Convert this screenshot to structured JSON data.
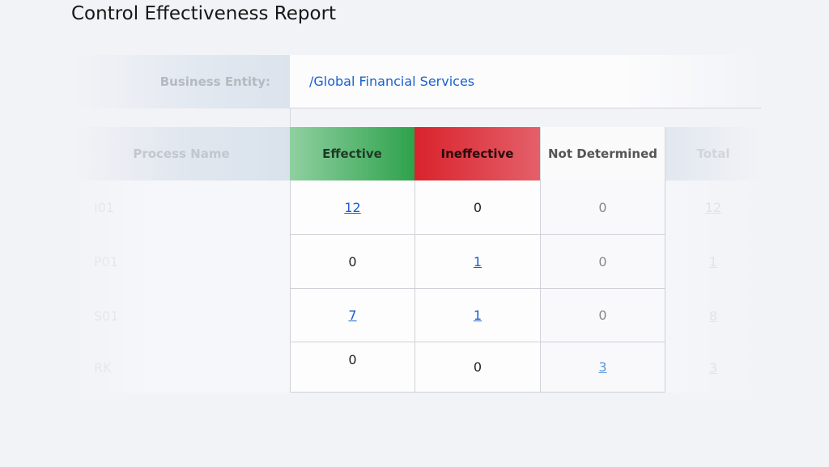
{
  "title": "Control Effectiveness Report",
  "entity": {
    "label": "Business Entity:",
    "value": "/Global Financial Services"
  },
  "columns": [
    "Process Name",
    "Effective",
    "Ineffective",
    "Not Determined",
    "Total"
  ],
  "rows": [
    {
      "name": "I01",
      "effective": "12",
      "ineffective": "0",
      "not_determined": "0",
      "total": "12"
    },
    {
      "name": "P01",
      "effective": "0",
      "ineffective": "1",
      "not_determined": "0",
      "total": "1"
    },
    {
      "name": "S01",
      "effective": "7",
      "ineffective": "1",
      "not_determined": "0",
      "total": "8"
    },
    {
      "name": "RK",
      "effective": "0",
      "ineffective": "0",
      "not_determined": "3",
      "total": "3"
    }
  ],
  "colors": {
    "effective": "#2ea24c",
    "ineffective": "#d9232c",
    "link": "#1a5fd0"
  }
}
